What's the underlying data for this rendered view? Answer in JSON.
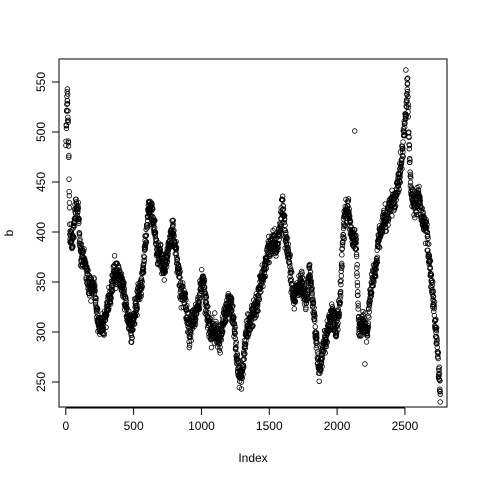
{
  "chart_data": {
    "type": "scatter",
    "title": "",
    "xlabel": "Index",
    "ylabel": "b",
    "xlim": [
      -50,
      2810
    ],
    "ylim": [
      225,
      573
    ],
    "x_ticks": [
      0,
      500,
      1000,
      1500,
      2000,
      2500
    ],
    "y_ticks": [
      250,
      300,
      350,
      400,
      450,
      500,
      550
    ],
    "grid": false,
    "marker": "open-circle",
    "marker_color": "#000000",
    "n_points": 2760,
    "trend_knots": [
      [
        0,
        490
      ],
      [
        10,
        540
      ],
      [
        20,
        500
      ],
      [
        30,
        395
      ],
      [
        50,
        390
      ],
      [
        70,
        420
      ],
      [
        90,
        425
      ],
      [
        110,
        380
      ],
      [
        140,
        370
      ],
      [
        170,
        345
      ],
      [
        210,
        345
      ],
      [
        240,
        310
      ],
      [
        270,
        305
      ],
      [
        300,
        320
      ],
      [
        330,
        340
      ],
      [
        360,
        360
      ],
      [
        400,
        355
      ],
      [
        430,
        340
      ],
      [
        460,
        310
      ],
      [
        490,
        300
      ],
      [
        520,
        330
      ],
      [
        560,
        350
      ],
      [
        590,
        390
      ],
      [
        610,
        430
      ],
      [
        640,
        415
      ],
      [
        670,
        385
      ],
      [
        700,
        370
      ],
      [
        730,
        360
      ],
      [
        760,
        390
      ],
      [
        790,
        405
      ],
      [
        820,
        370
      ],
      [
        850,
        340
      ],
      [
        880,
        330
      ],
      [
        910,
        300
      ],
      [
        940,
        310
      ],
      [
        980,
        330
      ],
      [
        1010,
        355
      ],
      [
        1040,
        320
      ],
      [
        1070,
        300
      ],
      [
        1100,
        305
      ],
      [
        1130,
        290
      ],
      [
        1160,
        310
      ],
      [
        1200,
        330
      ],
      [
        1230,
        320
      ],
      [
        1260,
        275
      ],
      [
        1280,
        260
      ],
      [
        1300,
        255
      ],
      [
        1330,
        300
      ],
      [
        1360,
        310
      ],
      [
        1400,
        325
      ],
      [
        1430,
        345
      ],
      [
        1460,
        360
      ],
      [
        1490,
        380
      ],
      [
        1520,
        390
      ],
      [
        1560,
        385
      ],
      [
        1600,
        425
      ],
      [
        1620,
        395
      ],
      [
        1650,
        370
      ],
      [
        1680,
        330
      ],
      [
        1710,
        345
      ],
      [
        1740,
        350
      ],
      [
        1770,
        330
      ],
      [
        1800,
        360
      ],
      [
        1830,
        315
      ],
      [
        1860,
        270
      ],
      [
        1880,
        265
      ],
      [
        1900,
        290
      ],
      [
        1930,
        300
      ],
      [
        1960,
        320
      ],
      [
        1990,
        300
      ],
      [
        2020,
        330
      ],
      [
        2050,
        410
      ],
      [
        2080,
        425
      ],
      [
        2110,
        395
      ],
      [
        2140,
        390
      ],
      [
        2160,
        305
      ],
      [
        2190,
        310
      ],
      [
        2220,
        300
      ],
      [
        2250,
        345
      ],
      [
        2280,
        360
      ],
      [
        2310,
        395
      ],
      [
        2340,
        410
      ],
      [
        2370,
        415
      ],
      [
        2400,
        430
      ],
      [
        2430,
        435
      ],
      [
        2460,
        455
      ],
      [
        2480,
        480
      ],
      [
        2500,
        510
      ],
      [
        2520,
        545
      ],
      [
        2540,
        445
      ],
      [
        2560,
        430
      ],
      [
        2580,
        430
      ],
      [
        2600,
        440
      ],
      [
        2630,
        410
      ],
      [
        2660,
        400
      ],
      [
        2680,
        370
      ],
      [
        2700,
        345
      ],
      [
        2720,
        315
      ],
      [
        2740,
        285
      ],
      [
        2760,
        235
      ]
    ],
    "notable_points": [
      [
        12,
        543
      ],
      [
        14,
        538
      ],
      [
        2130,
        501
      ],
      [
        2507,
        562
      ],
      [
        2515,
        553
      ],
      [
        1295,
        243
      ],
      [
        2760,
        230
      ],
      [
        2205,
        268
      ]
    ]
  }
}
